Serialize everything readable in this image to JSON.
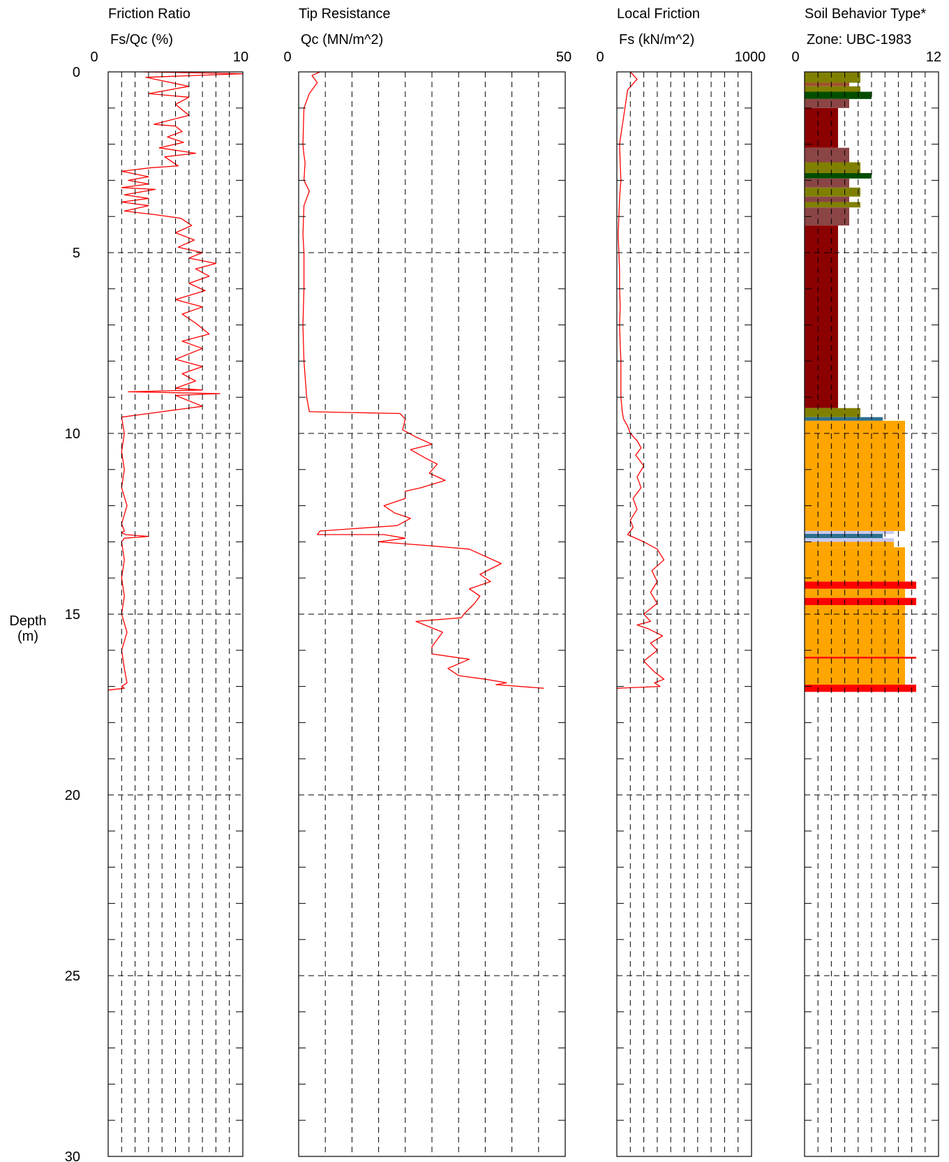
{
  "depth_axis": {
    "label_line1": "Depth",
    "label_line2": "(m)",
    "ticks": [
      "0",
      "5",
      "10",
      "15",
      "20",
      "25",
      "30"
    ],
    "range": [
      0,
      30
    ],
    "major_step": 5,
    "minor_step": 1
  },
  "chart_data": [
    {
      "type": "line",
      "title": "Friction Ratio",
      "unit": "Fs/Qc (%)",
      "xlim": [
        0,
        10
      ],
      "x_min_label": "0",
      "x_max_label": "10",
      "grid": true,
      "color": "#ff0000",
      "series": [
        {
          "x": [
            2.6,
            10.0,
            2.8,
            6.0,
            3.0,
            6.0,
            5.0,
            6.0,
            3.4,
            5.0,
            5.5,
            4.4,
            5.6,
            3.8,
            6.5,
            4.2,
            5.2,
            3.2,
            1.0,
            3.0,
            1.5,
            3.0,
            1.0,
            3.5,
            1.2,
            3.0,
            1.0,
            3.0,
            1.2,
            3.5,
            5.4,
            6.2,
            5.0,
            6.4,
            5.2,
            7.0,
            6.0,
            8.0,
            6.5,
            7.5,
            6.0,
            7.2,
            5.0,
            7.0,
            5.5,
            6.5,
            7.5,
            5.5,
            7.0,
            5.0,
            7.0,
            5.5,
            6.5,
            5.0,
            7.0,
            1.5,
            8.3,
            5.0,
            7.0,
            5.0,
            3.0,
            1.0,
            1.2,
            1.0,
            1.2,
            1.0,
            1.4,
            1.0,
            1.2,
            1.0,
            1.3,
            3.0,
            1.2,
            1.0,
            1.2,
            1.0,
            1.2,
            1.0,
            1.4,
            1.0,
            1.2,
            1.4,
            1.0,
            1.2,
            0.0
          ],
          "y": [
            0.0,
            0.05,
            0.15,
            0.4,
            0.6,
            0.7,
            0.9,
            1.2,
            1.45,
            1.5,
            1.65,
            1.8,
            1.95,
            2.1,
            2.25,
            2.35,
            2.6,
            2.65,
            2.75,
            2.9,
            3.0,
            3.1,
            3.2,
            3.25,
            3.4,
            3.5,
            3.6,
            3.7,
            3.85,
            3.95,
            4.05,
            4.25,
            4.45,
            4.65,
            4.85,
            5.0,
            5.15,
            5.3,
            5.45,
            5.65,
            5.85,
            6.05,
            6.3,
            6.5,
            6.7,
            6.95,
            7.25,
            7.45,
            7.65,
            7.95,
            8.15,
            8.35,
            8.55,
            8.75,
            8.8,
            8.85,
            8.9,
            8.95,
            9.25,
            9.35,
            9.45,
            9.55,
            10.0,
            10.5,
            11.0,
            11.5,
            12.0,
            12.5,
            12.7,
            12.75,
            12.8,
            12.85,
            12.9,
            13.0,
            13.5,
            14.0,
            14.5,
            15.0,
            15.5,
            16.0,
            16.5,
            16.9,
            17.0,
            17.05,
            17.1
          ]
        }
      ]
    },
    {
      "type": "line",
      "title": "Tip Resistance",
      "unit": "Qc (MN/m^2)",
      "xlim": [
        0,
        50
      ],
      "x_min_label": "0",
      "x_max_label": "50",
      "grid": true,
      "color": "#ff0000",
      "series": [
        {
          "x": [
            4.0,
            2.5,
            3.5,
            2.0,
            1.0,
            0.8,
            1.0,
            1.2,
            1.0,
            2.0,
            1.0,
            0.8,
            1.0,
            1.0,
            0.8,
            1.0,
            1.5,
            2.0,
            19.0,
            20.0,
            19.5,
            22.0,
            25.0,
            21.0,
            24.0,
            26.0,
            24.5,
            27.5,
            23.0,
            20.0,
            20.0,
            16.0,
            18.0,
            21.0,
            18.5,
            4.0,
            3.5,
            16.0,
            20.0,
            15.0,
            24.0,
            32.0,
            38.0,
            34.0,
            36.0,
            32.0,
            34.0,
            33.0,
            31.0,
            30.5,
            22.0,
            27.0,
            25.0,
            25.0,
            32.0,
            28.0,
            30.0,
            35.0,
            39.0,
            37.0,
            46.0
          ],
          "y": [
            0.0,
            0.1,
            0.3,
            0.6,
            1.0,
            2.0,
            2.3,
            2.5,
            3.0,
            3.3,
            3.7,
            4.5,
            5.0,
            6.0,
            7.0,
            8.0,
            9.0,
            9.4,
            9.45,
            9.6,
            9.9,
            10.1,
            10.3,
            10.45,
            10.7,
            10.85,
            11.1,
            11.3,
            11.5,
            11.6,
            11.8,
            12.0,
            12.2,
            12.35,
            12.55,
            12.7,
            12.8,
            12.8,
            12.9,
            13.0,
            13.1,
            13.2,
            13.6,
            13.9,
            14.1,
            14.3,
            14.5,
            14.7,
            15.0,
            15.1,
            15.2,
            15.5,
            15.9,
            16.1,
            16.25,
            16.5,
            16.7,
            16.8,
            16.9,
            16.95,
            17.05
          ]
        }
      ]
    },
    {
      "type": "line",
      "title": "Local Friction",
      "unit": "Fs (kN/m^2)",
      "xlim": [
        0,
        1000
      ],
      "x_min_label": "0",
      "x_max_label": "1000",
      "grid": true,
      "color": "#ff0000",
      "series": [
        {
          "x": [
            100,
            150,
            80,
            60,
            40,
            20,
            25,
            30,
            20,
            15,
            10,
            15,
            20,
            20,
            25,
            20,
            25,
            30,
            30,
            30,
            40,
            50,
            80,
            100,
            150,
            180,
            140,
            200,
            150,
            180,
            120,
            150,
            100,
            120,
            80,
            200,
            300,
            350,
            260,
            300,
            250,
            300,
            200,
            250,
            150,
            230,
            340,
            250,
            300,
            200,
            280,
            350,
            280,
            320,
            0
          ],
          "y": [
            0.0,
            0.2,
            0.5,
            1.0,
            1.5,
            2.0,
            2.5,
            3.0,
            3.5,
            4.0,
            4.5,
            5.0,
            5.5,
            6.0,
            6.5,
            7.0,
            7.5,
            8.0,
            8.5,
            9.0,
            9.4,
            9.6,
            9.8,
            10.0,
            10.2,
            10.4,
            10.6,
            10.9,
            11.2,
            11.5,
            11.8,
            12.1,
            12.4,
            12.6,
            12.8,
            13.0,
            13.2,
            13.5,
            13.8,
            14.1,
            14.4,
            14.7,
            15.0,
            15.2,
            15.3,
            15.4,
            15.6,
            15.8,
            16.0,
            16.3,
            16.6,
            16.8,
            16.9,
            17.0,
            17.05
          ]
        }
      ]
    },
    {
      "type": "bar",
      "orientation": "horizontal",
      "title": "Soil Behavior Type*",
      "unit": "Zone: UBC-1983",
      "xlim": [
        0,
        12
      ],
      "x_min_label": "0",
      "x_max_label": "12",
      "grid": true,
      "bars": [
        {
          "depth_top": 0.0,
          "depth_bottom": 0.3,
          "zone": 5,
          "color": "#808000"
        },
        {
          "depth_top": 0.3,
          "depth_bottom": 0.4,
          "zone": 4,
          "color": "#a0522d"
        },
        {
          "depth_top": 0.4,
          "depth_bottom": 0.55,
          "zone": 5,
          "color": "#808000"
        },
        {
          "depth_top": 0.55,
          "depth_bottom": 0.75,
          "zone": 6,
          "color": "#004d00"
        },
        {
          "depth_top": 0.75,
          "depth_bottom": 1.0,
          "zone": 4,
          "color": "#8b4545"
        },
        {
          "depth_top": 1.0,
          "depth_bottom": 2.1,
          "zone": 3,
          "color": "#8b0000"
        },
        {
          "depth_top": 2.1,
          "depth_bottom": 2.5,
          "zone": 4,
          "color": "#8b4545"
        },
        {
          "depth_top": 2.5,
          "depth_bottom": 2.8,
          "zone": 5,
          "color": "#808000"
        },
        {
          "depth_top": 2.8,
          "depth_bottom": 2.95,
          "zone": 6,
          "color": "#004d00"
        },
        {
          "depth_top": 2.95,
          "depth_bottom": 3.2,
          "zone": 4,
          "color": "#8b4545"
        },
        {
          "depth_top": 3.2,
          "depth_bottom": 3.45,
          "zone": 5,
          "color": "#808000"
        },
        {
          "depth_top": 3.45,
          "depth_bottom": 3.6,
          "zone": 4,
          "color": "#8b4545"
        },
        {
          "depth_top": 3.6,
          "depth_bottom": 3.75,
          "zone": 5,
          "color": "#808000"
        },
        {
          "depth_top": 3.75,
          "depth_bottom": 4.25,
          "zone": 4,
          "color": "#8b4545"
        },
        {
          "depth_top": 4.25,
          "depth_bottom": 9.3,
          "zone": 3,
          "color": "#8b0000"
        },
        {
          "depth_top": 9.3,
          "depth_bottom": 9.55,
          "zone": 5,
          "color": "#808000"
        },
        {
          "depth_top": 9.55,
          "depth_bottom": 9.65,
          "zone": 7,
          "color": "#2e6f8e"
        },
        {
          "depth_top": 9.65,
          "depth_bottom": 12.7,
          "zone": 9,
          "color": "#ffa500"
        },
        {
          "depth_top": 12.7,
          "depth_bottom": 12.78,
          "zone": 8,
          "color": "#c8c8f0"
        },
        {
          "depth_top": 12.78,
          "depth_bottom": 12.9,
          "zone": 7,
          "color": "#2e6f8e"
        },
        {
          "depth_top": 12.9,
          "depth_bottom": 13.0,
          "zone": 8,
          "color": "#c8c8f0"
        },
        {
          "depth_top": 13.0,
          "depth_bottom": 13.15,
          "zone": 8,
          "color": "#ffa500"
        },
        {
          "depth_top": 13.15,
          "depth_bottom": 14.1,
          "zone": 9,
          "color": "#ffa500"
        },
        {
          "depth_top": 14.1,
          "depth_bottom": 14.3,
          "zone": 10,
          "color": "#ff0000"
        },
        {
          "depth_top": 14.3,
          "depth_bottom": 14.55,
          "zone": 9,
          "color": "#ffa500"
        },
        {
          "depth_top": 14.55,
          "depth_bottom": 14.75,
          "zone": 10,
          "color": "#ff0000"
        },
        {
          "depth_top": 14.75,
          "depth_bottom": 16.18,
          "zone": 9,
          "color": "#ffa500"
        },
        {
          "depth_top": 16.18,
          "depth_bottom": 16.23,
          "zone": 10,
          "color": "#ff0000"
        },
        {
          "depth_top": 16.23,
          "depth_bottom": 16.95,
          "zone": 9,
          "color": "#ffa500"
        },
        {
          "depth_top": 16.95,
          "depth_bottom": 17.15,
          "zone": 10,
          "color": "#ff0000"
        }
      ]
    }
  ]
}
